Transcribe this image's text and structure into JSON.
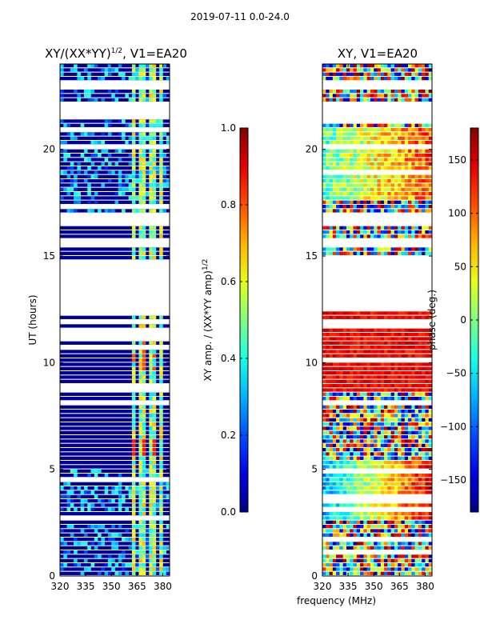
{
  "figure_title": "2019-07-11 0.0-24.0",
  "chart_data": [
    {
      "type": "heatmap",
      "title": "XY/(XX*YY)^(1/2), V1=EA20",
      "title_main": "XY/(XX*YY)",
      "title_sup": "1/2",
      "title_tail": ", V1=EA20",
      "xlabel": "",
      "ylabel": "UT (hours)",
      "xlim": [
        320,
        384
      ],
      "ylim": [
        0,
        24
      ],
      "xticks": [
        320,
        335,
        350,
        365,
        380
      ],
      "yticks": [
        0,
        5,
        10,
        15,
        20
      ],
      "empty_ut_ranges": [
        [
          12.4,
          14.8
        ],
        [
          15.5,
          15.8
        ],
        [
          16.4,
          17.0
        ],
        [
          21.4,
          22.2
        ],
        [
          22.8,
          23.1
        ]
      ],
      "value_range": [
        0.0,
        1.0
      ],
      "colorbar": {
        "label": "XY amp. / (XX*YY amp)^(1/2)",
        "label_main": "XY amp. / (XX*YY amp)",
        "label_sup": "1/2",
        "range": [
          0.0,
          1.0
        ],
        "ticks": [
          "0.0",
          "0.2",
          "0.4",
          "0.6",
          "0.8",
          "1.0"
        ],
        "tick_values": [
          0.0,
          0.2,
          0.4,
          0.6,
          0.8,
          1.0
        ]
      }
    },
    {
      "type": "heatmap",
      "title": "XY, V1=EA20",
      "xlabel": "frequency (MHz)",
      "ylabel": "",
      "xlim": [
        320,
        384
      ],
      "ylim": [
        0,
        24
      ],
      "xticks": [
        320,
        335,
        350,
        365,
        380
      ],
      "yticks": [
        0,
        5,
        10,
        15,
        20
      ],
      "empty_ut_ranges": [
        [
          12.4,
          14.8
        ],
        [
          15.5,
          15.8
        ],
        [
          16.4,
          17.0
        ],
        [
          21.4,
          22.2
        ],
        [
          22.8,
          23.1
        ]
      ],
      "value_range": [
        -180,
        180
      ],
      "colorbar": {
        "label": "phase (deg.)",
        "range": [
          -180,
          180
        ],
        "ticks": [
          "150",
          "100",
          "50",
          "0",
          "−50",
          "−100",
          "−150"
        ],
        "tick_values": [
          150,
          100,
          50,
          0,
          -50,
          -100,
          -150
        ]
      }
    }
  ]
}
